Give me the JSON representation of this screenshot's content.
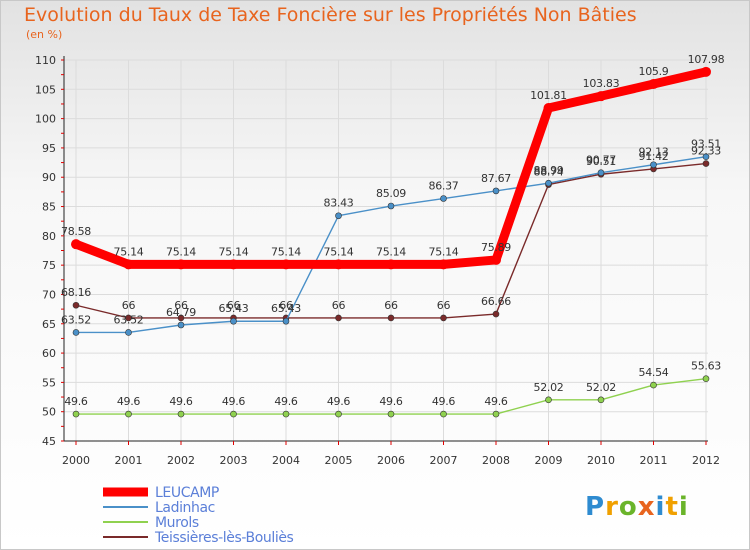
{
  "title": "Evolution du Taux de Taxe Foncière sur les Propriétés Non Bâties",
  "unit": "(en %)",
  "logo": {
    "letters": [
      "P",
      "r",
      "o",
      "x",
      "i",
      "t",
      "i"
    ]
  },
  "chart_data": {
    "type": "line",
    "title": "Evolution du Taux de Taxe Foncière sur les Propriétés Non Bâties",
    "ylabel": "(en %)",
    "xlabel": "",
    "ylim": [
      45,
      110
    ],
    "yticks": [
      45,
      50,
      55,
      60,
      65,
      70,
      75,
      80,
      85,
      90,
      95,
      100,
      105,
      110
    ],
    "x": [
      "2000",
      "2001",
      "2002",
      "2003",
      "2004",
      "2005",
      "2006",
      "2007",
      "2008",
      "2009",
      "2010",
      "2011",
      "2012"
    ],
    "legend_position": "bottom-left",
    "series": [
      {
        "name": "Teissières-lès-Bouliès",
        "color": "#7a2a2a",
        "values": [
          68.16,
          66,
          66,
          66,
          66,
          66,
          66,
          66,
          66.66,
          88.74,
          90.51,
          91.42,
          92.33
        ],
        "labels": [
          "68.16",
          "66",
          "66",
          "66",
          "66",
          "66",
          "66",
          "66",
          "66.66",
          "88.74",
          "90.51",
          "91.42",
          "92.33"
        ]
      },
      {
        "name": "Murols",
        "color": "#8fd14f",
        "values": [
          49.6,
          49.6,
          49.6,
          49.6,
          49.6,
          49.6,
          49.6,
          49.6,
          49.6,
          52.02,
          52.02,
          54.54,
          55.63
        ],
        "labels": [
          "49.6",
          "49.6",
          "49.6",
          "49.6",
          "49.6",
          "49.6",
          "49.6",
          "49.6",
          "49.6",
          "52.02",
          "52.02",
          "54.54",
          "55.63"
        ]
      },
      {
        "name": "Ladinhac",
        "color": "#4a90c8",
        "values": [
          63.52,
          63.52,
          64.79,
          65.43,
          65.43,
          83.43,
          85.09,
          86.37,
          87.67,
          88.99,
          90.77,
          92.13,
          93.51
        ],
        "labels": [
          "63.52",
          "63.52",
          "64.79",
          "65.43",
          "65.43",
          "83.43",
          "85.09",
          "86.37",
          "87.67",
          "88.99",
          "90.77",
          "92.13",
          "93.51"
        ]
      },
      {
        "name": "LEUCAMP",
        "color": "#ff0000",
        "values": [
          78.58,
          75.14,
          75.14,
          75.14,
          75.14,
          75.14,
          75.14,
          75.14,
          75.89,
          101.81,
          103.83,
          105.9,
          107.98
        ],
        "labels": [
          "78.58",
          "75.14",
          "75.14",
          "75.14",
          "75.14",
          "75.14",
          "75.14",
          "75.14",
          "75.89",
          "101.81",
          "103.83",
          "105.9",
          "107.98"
        ]
      }
    ],
    "legend_order": [
      "LEUCAMP",
      "Ladinhac",
      "Murols",
      "Teissières-lès-Bouliès"
    ]
  }
}
